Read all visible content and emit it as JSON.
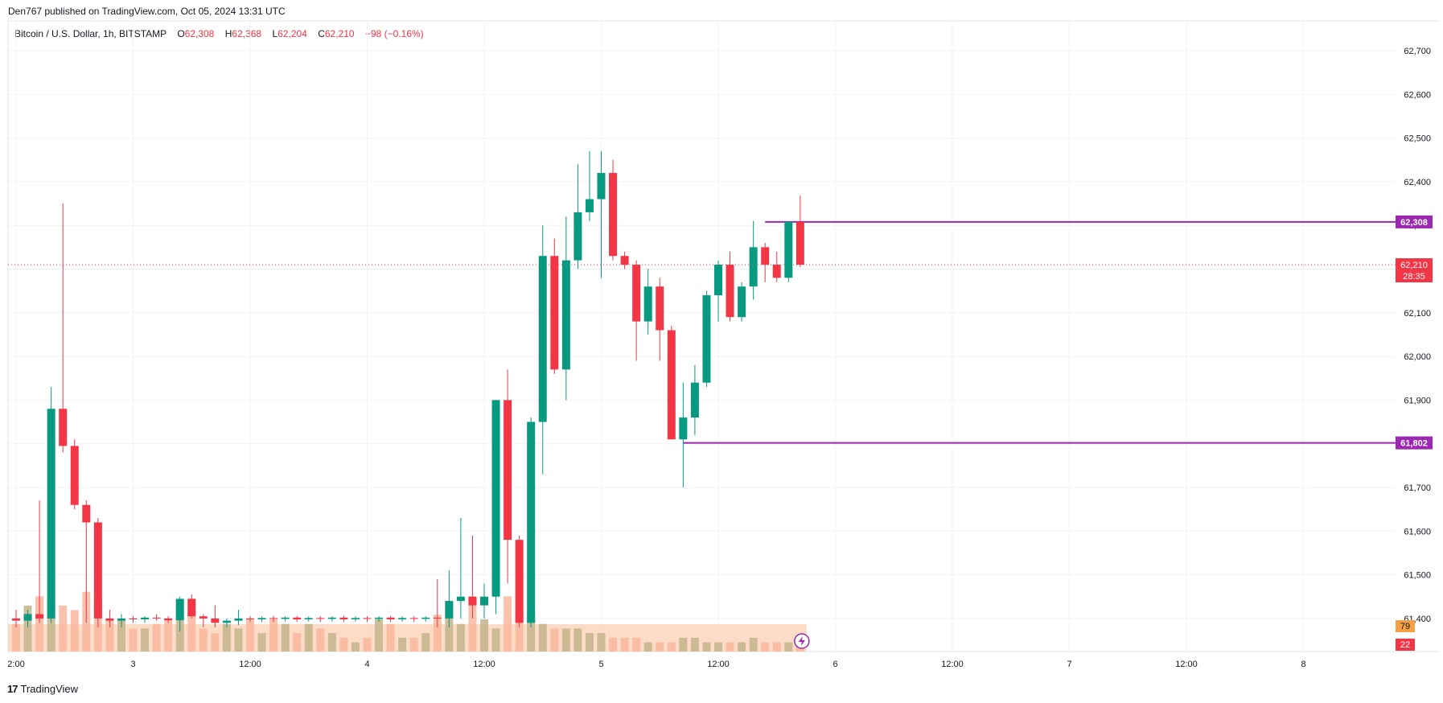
{
  "publisher_line": "Den767 published on TradingView.com, Oct 05, 2024 13:31 UTC",
  "legend": {
    "symbol": "Bitcoin / U.S. Dollar, 1h, BITSTAMP",
    "o_label": "O",
    "o_value": "62,308",
    "h_label": "H",
    "h_value": "62,368",
    "l_label": "L",
    "l_value": "62,204",
    "c_label": "C",
    "c_value": "62,210",
    "change": "−98 (−0.16%)"
  },
  "footer": {
    "logo_glyph": "17",
    "brand": "TradingView"
  },
  "colors": {
    "up": "#089981",
    "down": "#f23645",
    "level_line": "#9c27b0",
    "price_line": "#f23645",
    "volume_up": "#c8b98f",
    "volume_down": "#f7a88a",
    "volume_band": "#fcd0b4",
    "volume_up_bar": "#c2b48b",
    "volume_down_bar": "#f9b79d",
    "volume_label_up": "#f7a046",
    "volume_label_down": "#f23645"
  },
  "chart_data": {
    "type": "candlestick",
    "symbol": "Bitcoin / U.S. Dollar",
    "interval": "1h",
    "exchange": "BITSTAMP",
    "ylim": [
      61350,
      62800
    ],
    "y_ticks": [
      "62,700",
      "62,600",
      "62,500",
      "62,400",
      "62,300",
      "62,200",
      "62,100",
      "62,000",
      "61,900",
      "61,800",
      "61,700",
      "61,600",
      "61,500",
      "61,400"
    ],
    "y_tick_values": [
      62700,
      62600,
      62500,
      62400,
      62300,
      62200,
      62100,
      62000,
      61900,
      61800,
      61700,
      61600,
      61500,
      61400
    ],
    "x_ticks": [
      {
        "label": "2:00",
        "bar": 0
      },
      {
        "label": "3",
        "bar": 10
      },
      {
        "label": "12:00",
        "bar": 20
      },
      {
        "label": "4",
        "bar": 30
      },
      {
        "label": "12:00",
        "bar": 40
      },
      {
        "label": "5",
        "bar": 50
      },
      {
        "label": "12:00",
        "bar": 60
      },
      {
        "label": "6",
        "bar": 70
      },
      {
        "label": "12:00",
        "bar": 80
      },
      {
        "label": "7",
        "bar": 90
      },
      {
        "label": "12:00",
        "bar": 100
      },
      {
        "label": "8",
        "bar": 110
      }
    ],
    "candles": [
      {
        "o": 61400,
        "h": 61420,
        "l": 61380,
        "c": 61395
      },
      {
        "o": 61395,
        "h": 61420,
        "l": 61380,
        "c": 61410
      },
      {
        "o": 61410,
        "h": 61670,
        "l": 61390,
        "c": 61400
      },
      {
        "o": 61400,
        "h": 61930,
        "l": 61390,
        "c": 61880
      },
      {
        "o": 61880,
        "h": 62350,
        "l": 61780,
        "c": 61795
      },
      {
        "o": 61795,
        "h": 61810,
        "l": 61650,
        "c": 61660
      },
      {
        "o": 61660,
        "h": 61670,
        "l": 61390,
        "c": 61620
      },
      {
        "o": 61620,
        "h": 61630,
        "l": 61380,
        "c": 61400
      },
      {
        "o": 61400,
        "h": 61420,
        "l": 61380,
        "c": 61395
      },
      {
        "o": 61395,
        "h": 61410,
        "l": 61380,
        "c": 61400
      },
      {
        "o": 61400,
        "h": 61405,
        "l": 61390,
        "c": 61398
      },
      {
        "o": 61398,
        "h": 61405,
        "l": 61390,
        "c": 61402
      },
      {
        "o": 61402,
        "h": 61410,
        "l": 61395,
        "c": 61400
      },
      {
        "o": 61400,
        "h": 61405,
        "l": 61390,
        "c": 61396
      },
      {
        "o": 61396,
        "h": 61450,
        "l": 61370,
        "c": 61445
      },
      {
        "o": 61445,
        "h": 61455,
        "l": 61400,
        "c": 61405
      },
      {
        "o": 61405,
        "h": 61410,
        "l": 61380,
        "c": 61400
      },
      {
        "o": 61400,
        "h": 61430,
        "l": 61380,
        "c": 61390
      },
      {
        "o": 61390,
        "h": 61400,
        "l": 61380,
        "c": 61395
      },
      {
        "o": 61395,
        "h": 61420,
        "l": 61385,
        "c": 61400
      },
      {
        "o": 61400,
        "h": 61405,
        "l": 61392,
        "c": 61398
      },
      {
        "o": 61398,
        "h": 61405,
        "l": 61392,
        "c": 61401
      },
      {
        "o": 61401,
        "h": 61406,
        "l": 61392,
        "c": 61399
      },
      {
        "o": 61399,
        "h": 61405,
        "l": 61393,
        "c": 61402
      },
      {
        "o": 61402,
        "h": 61406,
        "l": 61392,
        "c": 61398
      },
      {
        "o": 61398,
        "h": 61405,
        "l": 61393,
        "c": 61401
      },
      {
        "o": 61401,
        "h": 61405,
        "l": 61392,
        "c": 61399
      },
      {
        "o": 61399,
        "h": 61405,
        "l": 61393,
        "c": 61402
      },
      {
        "o": 61402,
        "h": 61406,
        "l": 61392,
        "c": 61398
      },
      {
        "o": 61398,
        "h": 61405,
        "l": 61393,
        "c": 61401
      },
      {
        "o": 61401,
        "h": 61405,
        "l": 61392,
        "c": 61399
      },
      {
        "o": 61399,
        "h": 61405,
        "l": 61393,
        "c": 61402
      },
      {
        "o": 61402,
        "h": 61406,
        "l": 61392,
        "c": 61398
      },
      {
        "o": 61398,
        "h": 61405,
        "l": 61393,
        "c": 61401
      },
      {
        "o": 61401,
        "h": 61405,
        "l": 61392,
        "c": 61399
      },
      {
        "o": 61399,
        "h": 61405,
        "l": 61393,
        "c": 61402
      },
      {
        "o": 61402,
        "h": 61490,
        "l": 61380,
        "c": 61400
      },
      {
        "o": 61400,
        "h": 61510,
        "l": 61380,
        "c": 61440
      },
      {
        "o": 61440,
        "h": 61630,
        "l": 61400,
        "c": 61450
      },
      {
        "o": 61450,
        "h": 61590,
        "l": 61400,
        "c": 61430
      },
      {
        "o": 61430,
        "h": 61480,
        "l": 61400,
        "c": 61450
      },
      {
        "o": 61450,
        "h": 61900,
        "l": 61410,
        "c": 61900
      },
      {
        "o": 61900,
        "h": 61970,
        "l": 61480,
        "c": 61580
      },
      {
        "o": 61580,
        "h": 61590,
        "l": 61380,
        "c": 61390
      },
      {
        "o": 61390,
        "h": 61860,
        "l": 61380,
        "c": 61850
      },
      {
        "o": 61850,
        "h": 62300,
        "l": 61730,
        "c": 62230
      },
      {
        "o": 62230,
        "h": 62270,
        "l": 61960,
        "c": 61970
      },
      {
        "o": 61970,
        "h": 62320,
        "l": 61900,
        "c": 62220
      },
      {
        "o": 62220,
        "h": 62440,
        "l": 62200,
        "c": 62330
      },
      {
        "o": 62330,
        "h": 62470,
        "l": 62310,
        "c": 62360
      },
      {
        "o": 62360,
        "h": 62470,
        "l": 62180,
        "c": 62420
      },
      {
        "o": 62420,
        "h": 62450,
        "l": 62220,
        "c": 62230
      },
      {
        "o": 62230,
        "h": 62240,
        "l": 62200,
        "c": 62210
      },
      {
        "o": 62210,
        "h": 62220,
        "l": 61990,
        "c": 62080
      },
      {
        "o": 62080,
        "h": 62200,
        "l": 62050,
        "c": 62160
      },
      {
        "o": 62160,
        "h": 62180,
        "l": 61990,
        "c": 62060
      },
      {
        "o": 62060,
        "h": 62070,
        "l": 61810,
        "c": 61810
      },
      {
        "o": 61810,
        "h": 61940,
        "l": 61700,
        "c": 61860
      },
      {
        "o": 61860,
        "h": 61980,
        "l": 61820,
        "c": 61940
      },
      {
        "o": 61940,
        "h": 62150,
        "l": 61930,
        "c": 62140
      },
      {
        "o": 62140,
        "h": 62220,
        "l": 62080,
        "c": 62210
      },
      {
        "o": 62210,
        "h": 62240,
        "l": 62080,
        "c": 62090
      },
      {
        "o": 62090,
        "h": 62170,
        "l": 62080,
        "c": 62160
      },
      {
        "o": 62160,
        "h": 62310,
        "l": 62130,
        "c": 62250
      },
      {
        "o": 62250,
        "h": 62260,
        "l": 62170,
        "c": 62210
      },
      {
        "o": 62210,
        "h": 62240,
        "l": 62170,
        "c": 62180
      },
      {
        "o": 62180,
        "h": 62310,
        "l": 62170,
        "c": 62308
      },
      {
        "o": 62308,
        "h": 62368,
        "l": 62204,
        "c": 62210
      }
    ],
    "levels": [
      {
        "value": 62308,
        "label": "62,308",
        "from_bar": 64
      },
      {
        "value": 61802,
        "label": "61,802",
        "from_bar": 57
      }
    ],
    "last_price": {
      "value": 62210,
      "label": "62,210",
      "countdown": "28:35"
    },
    "volume": {
      "up_label": "79",
      "down_label": "22",
      "values": [
        6,
        10,
        12,
        12,
        10,
        9,
        13,
        11,
        7,
        7,
        5,
        5,
        6,
        7,
        9,
        9,
        5,
        4,
        6,
        5,
        7,
        4,
        7,
        6,
        4,
        6,
        5,
        4,
        3,
        2,
        3,
        7,
        6,
        3,
        3,
        4,
        8,
        11,
        6,
        12,
        7,
        5,
        12,
        9,
        8,
        6,
        5,
        5,
        5,
        4,
        4,
        3,
        3,
        3,
        2,
        2,
        2,
        3,
        3,
        2,
        2,
        2,
        2,
        3,
        2,
        2,
        2,
        2
      ]
    }
  }
}
